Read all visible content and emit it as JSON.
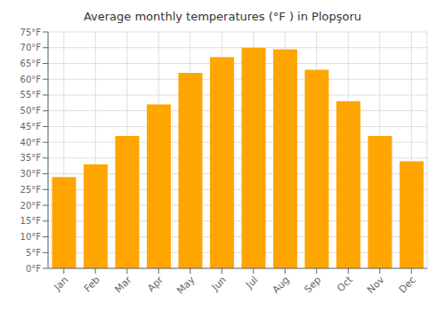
{
  "chart_data": {
    "type": "bar",
    "title": "Average monthly temperatures (°F ) in Plopşoru",
    "categories": [
      "Jan",
      "Feb",
      "Mar",
      "Apr",
      "May",
      "Jun",
      "Jul",
      "Aug",
      "Sep",
      "Oct",
      "Nov",
      "Dec"
    ],
    "values": [
      29,
      33,
      42,
      52,
      62,
      67,
      70,
      69.5,
      63,
      53,
      42,
      34
    ],
    "color": "#FFA500",
    "ylim": [
      0,
      75
    ],
    "yticks": [
      {
        "value": 0,
        "label": "0°F"
      },
      {
        "value": 5,
        "label": "5°F"
      },
      {
        "value": 10,
        "label": "10°F"
      },
      {
        "value": 15,
        "label": "15°F"
      },
      {
        "value": 20,
        "label": "20°F"
      },
      {
        "value": 25,
        "label": "25°F"
      },
      {
        "value": 30,
        "label": "30°F"
      },
      {
        "value": 35,
        "label": "35°F"
      },
      {
        "value": 40,
        "label": "40°F"
      },
      {
        "value": 45,
        "label": "45°F"
      },
      {
        "value": 50,
        "label": "50°F"
      },
      {
        "value": 55,
        "label": "55°F"
      },
      {
        "value": 60,
        "label": "60°F"
      },
      {
        "value": 65,
        "label": "65°F"
      },
      {
        "value": 70,
        "label": "70°F"
      },
      {
        "value": 75,
        "label": "75°F"
      }
    ],
    "grid": true
  }
}
